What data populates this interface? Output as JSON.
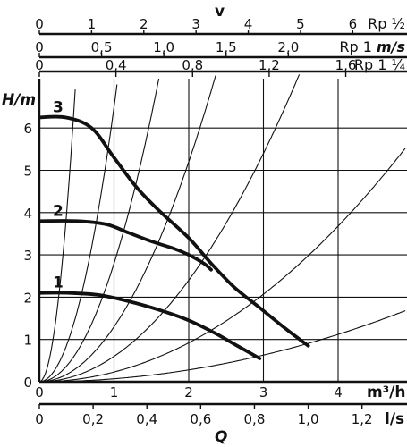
{
  "chart_data": {
    "type": "line",
    "title": "",
    "xlabel": "Q",
    "ylabel": "H/m",
    "grid": true,
    "x_unit": "m³/h",
    "x_ticks": [
      0,
      1,
      2,
      3,
      4
    ],
    "xlim": [
      0,
      4.9
    ],
    "y_ticks": [
      0,
      1,
      2,
      3,
      4,
      5,
      6
    ],
    "ylim": [
      0,
      7.2
    ],
    "series": [
      {
        "name": "3",
        "x": [
          0,
          0.35,
          0.7,
          1.0,
          1.3,
          1.6,
          2.0,
          2.3,
          2.6,
          2.95,
          3.3,
          3.6
        ],
        "y": [
          6.25,
          6.25,
          6.0,
          5.3,
          4.6,
          4.05,
          3.4,
          2.8,
          2.25,
          1.75,
          1.25,
          0.85
        ]
      },
      {
        "name": "2",
        "x": [
          0,
          0.5,
          0.9,
          1.2,
          1.5,
          1.8,
          2.0,
          2.2,
          2.3
        ],
        "y": [
          3.8,
          3.8,
          3.72,
          3.52,
          3.32,
          3.15,
          3.0,
          2.8,
          2.65
        ]
      },
      {
        "name": "1",
        "x": [
          0,
          0.4,
          0.8,
          1.2,
          1.6,
          2.0,
          2.35,
          2.65,
          2.95
        ],
        "y": [
          2.1,
          2.1,
          2.05,
          1.9,
          1.7,
          1.45,
          1.15,
          0.85,
          0.55
        ]
      }
    ],
    "system_curve_coefficients": [
      30,
      6.5,
      2.8,
      1.3,
      0.6,
      0.23,
      0.07
    ],
    "secondary_axes": [
      {
        "name": "Rp ½",
        "unit": "",
        "ticks": [
          0,
          1,
          2,
          3,
          4,
          5,
          6
        ],
        "labels": [
          "0",
          "1",
          "2",
          "3",
          "4",
          "5",
          "6"
        ],
        "per_m3h": 1.43
      },
      {
        "name": "Rp 1",
        "unit": "m/s",
        "ticks": [
          0,
          0.5,
          1.0,
          1.5,
          2.0
        ],
        "labels": [
          "0",
          "0,5",
          "1,0",
          "1,5",
          "2,0"
        ],
        "per_m3h": 0.6
      },
      {
        "name": "Rp 1 ¼",
        "unit": "",
        "ticks": [
          0,
          0.4,
          0.8,
          1.2,
          1.6
        ],
        "labels": [
          "0",
          "0,4",
          "0,8",
          "1,2",
          "1,6"
        ],
        "per_m3h": 0.39
      }
    ],
    "velocity_label": "v",
    "bottom_axis": {
      "unit": "l/s",
      "ticks": [
        0,
        0.2,
        0.4,
        0.6,
        0.8,
        1.0,
        1.2
      ],
      "labels": [
        "0",
        "0,2",
        "0,4",
        "0,6",
        "0,8",
        "1,0",
        "1,2"
      ],
      "per_m3h": 0.2778
    }
  }
}
